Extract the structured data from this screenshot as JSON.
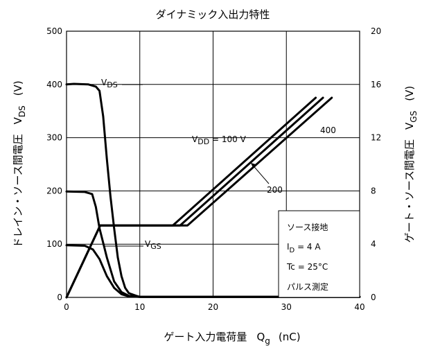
{
  "chart_data": {
    "type": "line",
    "title": "ダイナミック入出力特性",
    "xlabel": {
      "main": "ゲート入力電荷量",
      "symbol": "Q",
      "sub": "g",
      "unit": "(nC)"
    },
    "ylabel_left": {
      "main": "ドレイン・ソース間電圧",
      "symbol": "V",
      "sub": "DS",
      "unit": "(V)"
    },
    "ylabel_right": {
      "main": "ゲート・ソース間電圧",
      "symbol": "V",
      "sub": "GS",
      "unit": "(V)"
    },
    "xlim": [
      0,
      40
    ],
    "ylim_left": [
      0,
      500
    ],
    "ylim_right": [
      0,
      20
    ],
    "x_ticks": [
      "0",
      "10",
      "20",
      "30",
      "40"
    ],
    "y_left_ticks": [
      "0",
      "100",
      "200",
      "300",
      "400",
      "500"
    ],
    "y_right_ticks": [
      "0",
      "4",
      "8",
      "12",
      "16",
      "20"
    ],
    "grid": true,
    "vds_label": {
      "symbol": "V",
      "sub": "DS"
    },
    "vgs_label": {
      "symbol": "V",
      "sub": "GS"
    },
    "vdd_label": {
      "symbol": "V",
      "sub": "DD",
      "rest": " = 100 V"
    },
    "label_200": "200",
    "label_400": "400",
    "series": [
      {
        "curve": "VDS",
        "vdd": 100,
        "axis": "left",
        "points": [
          [
            0,
            98
          ],
          [
            2.5,
            97
          ],
          [
            3.6,
            90
          ],
          [
            4.5,
            72
          ],
          [
            5.5,
            40
          ],
          [
            6.5,
            18
          ],
          [
            7.5,
            6
          ],
          [
            8.5,
            2
          ],
          [
            10,
            1
          ],
          [
            15,
            1
          ],
          [
            20,
            1
          ],
          [
            30,
            1
          ],
          [
            40,
            1
          ]
        ]
      },
      {
        "curve": "VDS",
        "vdd": 200,
        "axis": "left",
        "points": [
          [
            0,
            199
          ],
          [
            2.5,
            198
          ],
          [
            3.5,
            194
          ],
          [
            4,
            170
          ],
          [
            4.5,
            130
          ],
          [
            5.5,
            75
          ],
          [
            6.5,
            30
          ],
          [
            7.5,
            10
          ],
          [
            8.5,
            3
          ],
          [
            10,
            1
          ],
          [
            15,
            1
          ],
          [
            20,
            1
          ],
          [
            30,
            1
          ],
          [
            40,
            1
          ]
        ]
      },
      {
        "curve": "VDS",
        "vdd": 400,
        "axis": "left",
        "points": [
          [
            0,
            400
          ],
          [
            1,
            401
          ],
          [
            3,
            400
          ],
          [
            4,
            396
          ],
          [
            4.5,
            388
          ],
          [
            5,
            340
          ],
          [
            5.5,
            260
          ],
          [
            6,
            190
          ],
          [
            6.5,
            130
          ],
          [
            7,
            75
          ],
          [
            7.5,
            40
          ],
          [
            8,
            18
          ],
          [
            8.5,
            8
          ],
          [
            9.5,
            3
          ],
          [
            10,
            1
          ],
          [
            15,
            1
          ],
          [
            20,
            1
          ],
          [
            30,
            1
          ],
          [
            40,
            1
          ]
        ]
      },
      {
        "curve": "VGS",
        "vdd": 100,
        "axis": "right",
        "points": [
          [
            0,
            0
          ],
          [
            4.6,
            5.4
          ],
          [
            14.5,
            5.4
          ],
          [
            34,
            15
          ]
        ]
      },
      {
        "curve": "VGS",
        "vdd": 200,
        "axis": "right",
        "points": [
          [
            0,
            0
          ],
          [
            4.6,
            5.4
          ],
          [
            15.5,
            5.4
          ],
          [
            35,
            15
          ]
        ]
      },
      {
        "curve": "VGS",
        "vdd": 400,
        "axis": "right",
        "points": [
          [
            0,
            0
          ],
          [
            4.6,
            5.4
          ],
          [
            16.5,
            5.4
          ],
          [
            36.2,
            15
          ]
        ]
      }
    ],
    "legend_box": {
      "lines": [
        "ソース接地",
        "Tc = 25°C",
        "パルス測定"
      ],
      "id_line": {
        "symbol": "I",
        "sub": "D",
        "rest": " = 4 A"
      }
    }
  }
}
